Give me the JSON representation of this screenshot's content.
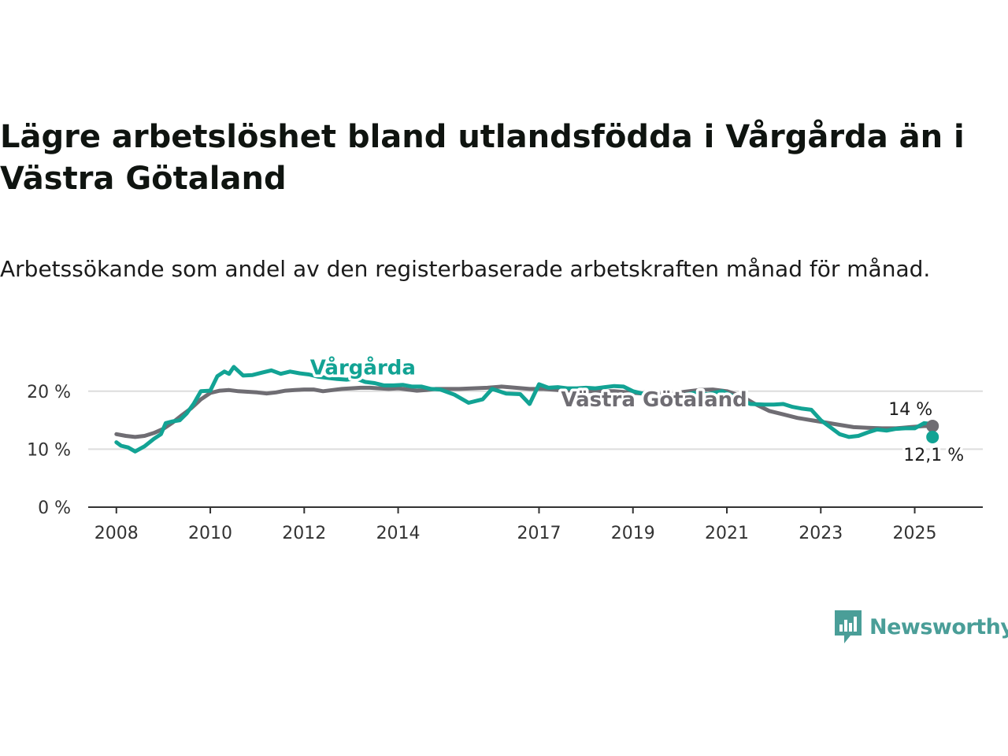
{
  "title": "Lägre arbetslöshet bland utlandsfödda i Vårgårda än i Västra Götaland",
  "subtitle": "Arbetssökande som andel av den registerbaserade arbetskraften månad för månad.",
  "brand": "Newsworthy",
  "colors": {
    "vargarda": "#12a394",
    "vastra_gotaland": "#6f6d73",
    "grid": "#dddddd",
    "axis": "#333333",
    "brand": "#4a9e98"
  },
  "chart_data": {
    "type": "line",
    "title": "Lägre arbetslöshet bland utlandsfödda i Vårgårda än i Västra Götaland",
    "subtitle": "Arbetssökande som andel av den registerbaserade arbetskraften månad för månad.",
    "xlabel": "",
    "ylabel": "",
    "x_ticks": [
      "2008",
      "2010",
      "2012",
      "2014",
      "2017",
      "2019",
      "2021",
      "2023",
      "2025"
    ],
    "x_tick_years": [
      2008,
      2010,
      2012,
      2014,
      2017,
      2019,
      2021,
      2023,
      2025
    ],
    "xlim": [
      2007.4,
      2026.45
    ],
    "y_ticks": [
      "0 %",
      "10 %",
      "20 %"
    ],
    "y_tick_values": [
      0,
      10,
      20
    ],
    "ylim": [
      0,
      25
    ],
    "grid": true,
    "legend": "inline labels",
    "series": [
      {
        "name": "Vårgårda",
        "end_label": "12,1 %",
        "x": [
          2008.0,
          2008.1,
          2008.25,
          2008.4,
          2008.6,
          2008.8,
          2008.95,
          2009.05,
          2009.2,
          2009.35,
          2009.5,
          2009.65,
          2009.8,
          2010.0,
          2010.15,
          2010.3,
          2010.4,
          2010.5,
          2010.7,
          2010.9,
          2011.1,
          2011.3,
          2011.5,
          2011.7,
          2011.9,
          2012.1,
          2012.3,
          2012.5,
          2012.7,
          2012.9,
          2013.1,
          2013.3,
          2013.5,
          2013.7,
          2013.9,
          2014.1,
          2014.3,
          2014.5,
          2014.7,
          2014.9,
          2015.2,
          2015.5,
          2015.8,
          2016.0,
          2016.3,
          2016.6,
          2016.8,
          2017.0,
          2017.2,
          2017.4,
          2017.6,
          2017.8,
          2018.0,
          2018.2,
          2018.4,
          2018.6,
          2018.8,
          2019.0,
          2019.2,
          2019.5,
          2019.8,
          2020.0,
          2020.3,
          2020.6,
          2020.9,
          2021.2,
          2021.5,
          2021.8,
          2022.0,
          2022.2,
          2022.4,
          2022.6,
          2022.8,
          2023.0,
          2023.2,
          2023.4,
          2023.6,
          2023.8,
          2024.0,
          2024.2,
          2024.4,
          2024.6,
          2024.8,
          2025.0,
          2025.2,
          2025.3,
          2025.38
        ],
        "y": [
          11.2,
          10.6,
          10.3,
          9.6,
          10.5,
          11.8,
          12.6,
          14.5,
          14.8,
          15.0,
          16.2,
          17.9,
          20.0,
          20.1,
          22.6,
          23.4,
          23.0,
          24.2,
          22.7,
          22.8,
          23.2,
          23.6,
          23.0,
          23.4,
          23.1,
          22.9,
          22.5,
          22.3,
          22.1,
          22.0,
          22.2,
          21.6,
          21.4,
          21.0,
          21.0,
          21.1,
          20.8,
          20.8,
          20.4,
          20.3,
          19.4,
          18.0,
          18.6,
          20.4,
          19.6,
          19.5,
          17.8,
          21.2,
          20.6,
          20.7,
          20.5,
          20.5,
          20.6,
          20.5,
          20.7,
          20.9,
          20.8,
          20.0,
          19.6,
          19.1,
          18.9,
          19.2,
          19.7,
          19.5,
          20.0,
          18.9,
          17.8,
          17.7,
          17.7,
          17.8,
          17.3,
          17.0,
          16.8,
          15.0,
          13.8,
          12.6,
          12.1,
          12.3,
          12.9,
          13.4,
          13.2,
          13.5,
          13.6,
          13.6,
          14.5,
          14.4,
          12.1
        ]
      },
      {
        "name": "Västra Götaland",
        "end_label": "14 %",
        "x": [
          2008.0,
          2008.2,
          2008.4,
          2008.6,
          2008.8,
          2009.0,
          2009.2,
          2009.4,
          2009.6,
          2009.8,
          2010.0,
          2010.2,
          2010.4,
          2010.6,
          2010.8,
          2011.0,
          2011.2,
          2011.4,
          2011.6,
          2011.8,
          2012.0,
          2012.2,
          2012.4,
          2012.6,
          2012.8,
          2013.0,
          2013.2,
          2013.4,
          2013.6,
          2013.8,
          2014.0,
          2014.2,
          2014.4,
          2014.6,
          2014.8,
          2015.0,
          2015.3,
          2015.6,
          2015.9,
          2016.2,
          2016.5,
          2016.8,
          2017.1,
          2017.4,
          2017.7,
          2018.0,
          2018.3,
          2018.6,
          2018.9,
          2019.2,
          2019.5,
          2019.8,
          2020.1,
          2020.4,
          2020.7,
          2021.0,
          2021.3,
          2021.6,
          2021.9,
          2022.2,
          2022.5,
          2022.8,
          2023.1,
          2023.4,
          2023.7,
          2024.0,
          2024.3,
          2024.6,
          2024.9,
          2025.2,
          2025.38
        ],
        "y": [
          12.6,
          12.3,
          12.1,
          12.3,
          12.8,
          13.5,
          14.6,
          15.9,
          17.1,
          18.6,
          19.7,
          20.1,
          20.2,
          20.0,
          19.9,
          19.8,
          19.6,
          19.8,
          20.1,
          20.2,
          20.3,
          20.3,
          20.0,
          20.2,
          20.4,
          20.5,
          20.6,
          20.6,
          20.5,
          20.4,
          20.5,
          20.3,
          20.1,
          20.2,
          20.4,
          20.4,
          20.4,
          20.5,
          20.6,
          20.8,
          20.6,
          20.4,
          20.4,
          20.2,
          20.1,
          20.0,
          20.0,
          20.0,
          19.8,
          19.6,
          19.6,
          19.5,
          19.9,
          20.2,
          20.3,
          20.0,
          19.2,
          17.8,
          16.6,
          16.0,
          15.4,
          15.0,
          14.6,
          14.2,
          13.8,
          13.7,
          13.6,
          13.6,
          13.8,
          14.0,
          14.0
        ]
      }
    ]
  }
}
